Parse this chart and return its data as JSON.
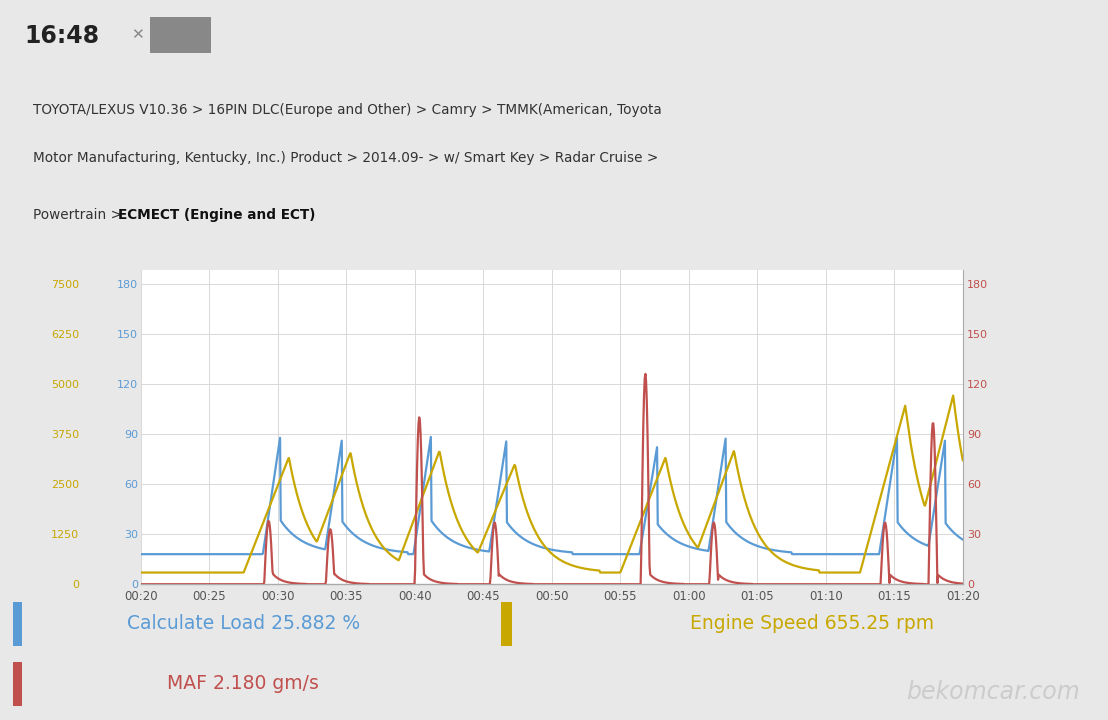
{
  "header_time": "16:48",
  "header_line1": "TOYOTA/LEXUS V10.36 > 16PIN DLC(Europe and Other) > Camry > TMMK(American, Toyota",
  "header_line2": "Motor Manufacturing, Kentucky, Inc.) Product > 2014.09- > w/ Smart Key > Radar Cruise >",
  "header_line3_normal": "Powertrain > ",
  "header_line3_bold": "ECMECT (Engine and ECT)",
  "bg_color": "#e8e8e8",
  "status_bar_color": "#c8c8c8",
  "panel_color": "#ffffff",
  "blue_color": "#5b9bd5",
  "yellow_color": "#c8a800",
  "red_color": "#c0504d",
  "grid_color": "#d8d8d8",
  "text_color_dark": "#333333",
  "text_color_mid": "#666666",
  "yticks_blue": [
    0,
    30,
    60,
    90,
    120,
    150,
    180
  ],
  "yticks_yellow": [
    0,
    1250,
    2500,
    3750,
    5000,
    6250,
    7500
  ],
  "yticks_red": [
    0,
    30,
    60,
    90,
    120,
    150,
    180
  ],
  "xtick_labels": [
    "00:20",
    "00:25",
    "00:30",
    "00:35",
    "00:40",
    "00:45",
    "00:50",
    "00:55",
    "01:00",
    "01:05",
    "01:10",
    "01:15",
    "01:20"
  ],
  "card1_text": "Calculate Load 25.882 %",
  "card1_color": "#5b9bd5",
  "card2_text": "Engine Speed 655.25 rpm",
  "card2_color": "#c8a800",
  "card3_text": "MAF 2.180 gm/s",
  "card3_color": "#c0504d",
  "watermark": "bekomcar.com"
}
